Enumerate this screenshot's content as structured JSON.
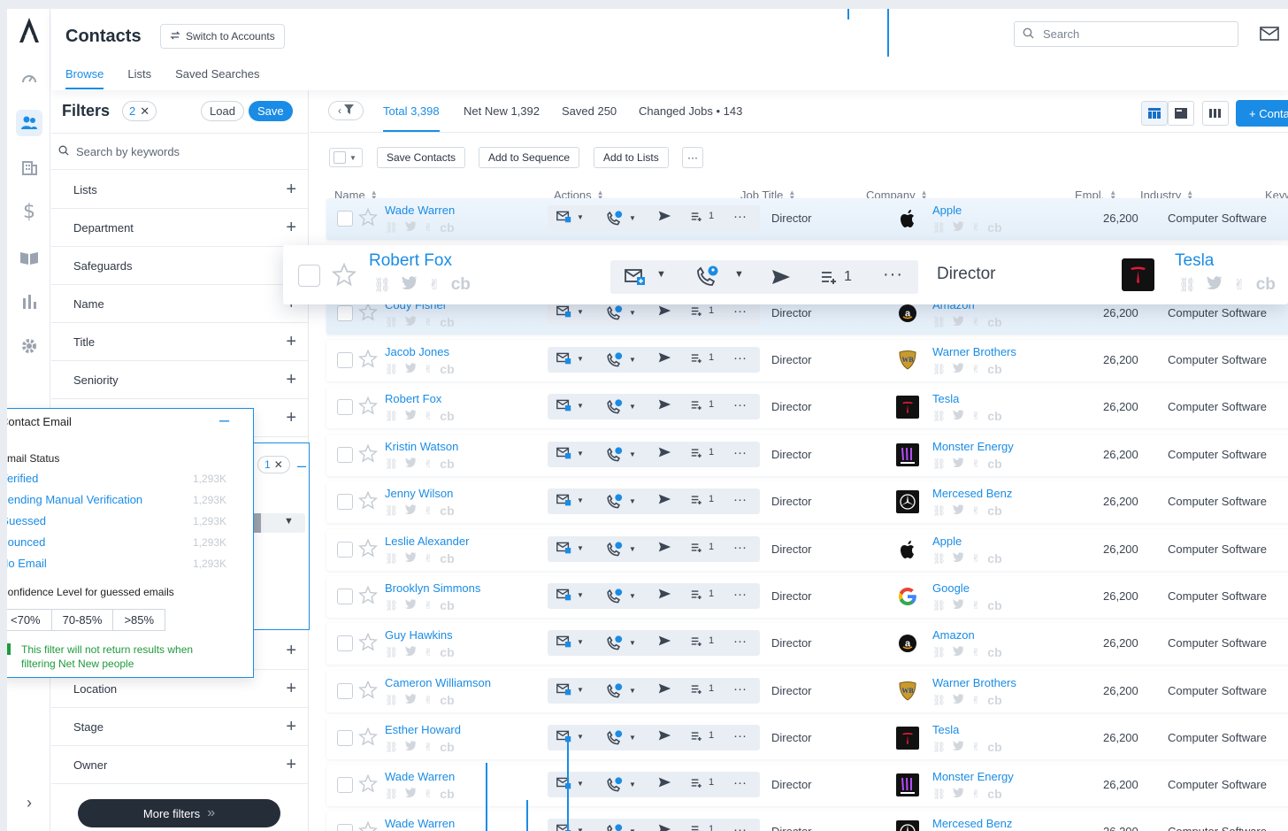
{
  "header": {
    "title": "Contacts",
    "switch_label": "Switch to Accounts",
    "search_placeholder": "Search"
  },
  "tabs": [
    {
      "label": "Browse"
    },
    {
      "label": "Lists"
    },
    {
      "label": "Saved Searches"
    }
  ],
  "filters": {
    "title": "Filters",
    "count": "2",
    "load": "Load",
    "save": "Save",
    "search_placeholder": "Search by keywords",
    "sections": [
      "Lists",
      "Department",
      "Safeguards",
      "Name",
      "Title",
      "Seniority",
      "",
      "",
      "Location",
      "Stage",
      "Owner"
    ],
    "selected_badge": "1",
    "more_filters": "More filters"
  },
  "email_popup": {
    "title": "Contact Email",
    "status_label": "Email Status",
    "options": [
      {
        "label": "Verified",
        "count": "1,293K"
      },
      {
        "label": "Pending Manual Verification",
        "count": "1,293K"
      },
      {
        "label": "Guessed",
        "count": "1,293K"
      },
      {
        "label": "Bounced",
        "count": "1,293K"
      },
      {
        "label": "No Email",
        "count": "1,293K"
      }
    ],
    "confidence_label": "Confidence Level for guessed emails",
    "confidence_options": [
      "<70%",
      "70-85%",
      ">85%"
    ],
    "note": "This filter will not return results when filtering Net New people"
  },
  "stats": {
    "total": "Total 3,398",
    "net_new": "Net New 1,392",
    "saved": "Saved 250",
    "changed": "Changed Jobs • 143"
  },
  "add_contact": "+ Contact",
  "toolbar": {
    "save_contacts": "Save Contacts",
    "add_sequence": "Add to Sequence",
    "add_lists": "Add to Lists"
  },
  "columns": {
    "name": "Name",
    "actions": "Actions",
    "job_title": "Job Title",
    "company": "Company",
    "empl": "Empl.",
    "industry": "Industry",
    "keywords": "Keywords"
  },
  "seq_count": "1",
  "rows": [
    {
      "name": "Wade Warren",
      "title": "Director",
      "company": "Apple",
      "logo": "apple",
      "empl": "26,200",
      "industry": "Computer Software"
    },
    {
      "name": "Cody Fisher",
      "title": "Director",
      "company": "Amazon",
      "logo": "amazon",
      "empl": "26,200",
      "industry": "Computer Software"
    },
    {
      "name": "Jacob Jones",
      "title": "Director",
      "company": "Warner Brothers",
      "logo": "warner",
      "empl": "26,200",
      "industry": "Computer Software"
    },
    {
      "name": "Robert Fox",
      "title": "Director",
      "company": "Tesla",
      "logo": "tesla",
      "empl": "26,200",
      "industry": "Computer Software"
    },
    {
      "name": "Kristin Watson",
      "title": "Director",
      "company": "Monster Energy",
      "logo": "monster",
      "empl": "26,200",
      "industry": "Computer Software"
    },
    {
      "name": "Jenny Wilson",
      "title": "Director",
      "company": "Mercesed Benz",
      "logo": "mercedes",
      "empl": "26,200",
      "industry": "Computer Software"
    },
    {
      "name": "Leslie Alexander",
      "title": "Director",
      "company": "Apple",
      "logo": "apple",
      "empl": "26,200",
      "industry": "Computer Software"
    },
    {
      "name": "Brooklyn Simmons",
      "title": "Director",
      "company": "Google",
      "logo": "google",
      "empl": "26,200",
      "industry": "Computer Software"
    },
    {
      "name": "Guy Hawkins",
      "title": "Director",
      "company": "Amazon",
      "logo": "amazon",
      "empl": "26,200",
      "industry": "Computer Software"
    },
    {
      "name": "Cameron Williamson",
      "title": "Director",
      "company": "Warner Brothers",
      "logo": "warner",
      "empl": "26,200",
      "industry": "Computer Software"
    },
    {
      "name": "Esther Howard",
      "title": "Director",
      "company": "Tesla",
      "logo": "tesla",
      "empl": "26,200",
      "industry": "Computer Software"
    },
    {
      "name": "Wade Warren",
      "title": "Director",
      "company": "Monster Energy",
      "logo": "monster",
      "empl": "26,200",
      "industry": "Computer Software"
    },
    {
      "name": "Wade Warren",
      "title": "Director",
      "company": "Mercesed Benz",
      "logo": "mercedes",
      "empl": "26,200",
      "industry": "Computer Software"
    }
  ],
  "floating_row": {
    "name": "Robert Fox",
    "title": "Director",
    "company": "Tesla",
    "seq_count": "1"
  },
  "colors": {
    "accent": "#1a8ce5",
    "dark": "#252d39",
    "success": "#1f9a3c"
  }
}
